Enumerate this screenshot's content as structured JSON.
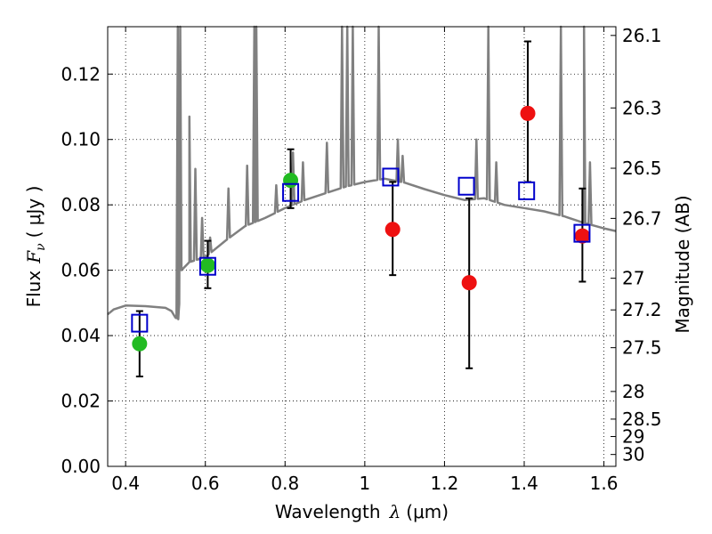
{
  "chart_data": {
    "type": "scatter",
    "xlabel_prefix": "Wavelength",
    "xlabel_var": "λ",
    "xlabel_unit": "(μm)",
    "ylabel_prefix": "Flux",
    "ylabel_var": "F",
    "ylabel_sub": "ν",
    "ylabel_unit": "( μJy )",
    "y2label": "Magnitude (AB)",
    "xlim": [
      0.355,
      1.63
    ],
    "ylim": [
      0.0,
      0.1345
    ],
    "grid": true,
    "xticks": [
      0.4,
      0.6,
      0.8,
      1.0,
      1.2,
      1.4,
      1.6
    ],
    "xtick_labels": [
      "0.4",
      "0.6",
      "0.8",
      "1",
      "1.2",
      "1.4",
      "1.6"
    ],
    "yticks": [
      0.0,
      0.02,
      0.04,
      0.06,
      0.08,
      0.1,
      0.12
    ],
    "ytick_labels": [
      "0.00",
      "0.02",
      "0.04",
      "0.06",
      "0.08",
      "0.10",
      "0.12"
    ],
    "mag_ticks": [
      {
        "label": "26.1",
        "mag": 26.1
      },
      {
        "label": "26.3",
        "mag": 26.3
      },
      {
        "label": "26.5",
        "mag": 26.5
      },
      {
        "label": "26.7",
        "mag": 26.7
      },
      {
        "label": "27",
        "mag": 27.0
      },
      {
        "label": "27.2",
        "mag": 27.2
      },
      {
        "label": "27.5",
        "mag": 27.5
      },
      {
        "label": "28",
        "mag": 28.0
      },
      {
        "label": "28.5",
        "mag": 28.5
      },
      {
        "label": "29",
        "mag": 29.0
      },
      {
        "label": "30",
        "mag": 30.0
      }
    ],
    "colors": {
      "model": "#808080",
      "green": "#22bb22",
      "red": "#ee1111",
      "square": "#0000cc",
      "errorbar": "#000000"
    },
    "series": [
      {
        "marker": "circle",
        "color": "green",
        "points": [
          {
            "x": 0.435,
            "y": 0.0375,
            "ylo": 0.0275,
            "yhi": 0.0475
          },
          {
            "x": 0.606,
            "y": 0.0615,
            "ylo": 0.0545,
            "yhi": 0.069
          },
          {
            "x": 0.814,
            "y": 0.0875,
            "ylo": 0.079,
            "yhi": 0.097
          }
        ]
      },
      {
        "marker": "circle",
        "color": "red",
        "points": [
          {
            "x": 1.07,
            "y": 0.0725,
            "ylo": 0.0585,
            "yhi": 0.087
          },
          {
            "x": 1.262,
            "y": 0.0562,
            "ylo": 0.03,
            "yhi": 0.082
          },
          {
            "x": 1.409,
            "y": 0.108,
            "ylo": 0.087,
            "yhi": 0.13
          },
          {
            "x": 1.546,
            "y": 0.0705,
            "ylo": 0.0565,
            "yhi": 0.085
          }
        ]
      },
      {
        "marker": "square",
        "color": "square",
        "points": [
          {
            "x": 0.435,
            "y": 0.0438
          },
          {
            "x": 0.606,
            "y": 0.0612
          },
          {
            "x": 0.814,
            "y": 0.0838
          },
          {
            "x": 1.065,
            "y": 0.0885
          },
          {
            "x": 1.255,
            "y": 0.0857
          },
          {
            "x": 1.406,
            "y": 0.0843
          },
          {
            "x": 1.545,
            "y": 0.0713
          }
        ]
      }
    ],
    "model_spectrum": {
      "continuum": [
        [
          0.355,
          0.0465
        ],
        [
          0.37,
          0.048
        ],
        [
          0.4,
          0.0492
        ],
        [
          0.45,
          0.049
        ],
        [
          0.5,
          0.0485
        ],
        [
          0.515,
          0.0475
        ],
        [
          0.525,
          0.0455
        ],
        [
          0.532,
          0.045
        ],
        [
          0.54,
          0.06
        ],
        [
          0.56,
          0.0625
        ],
        [
          0.6,
          0.064
        ],
        [
          0.65,
          0.069
        ],
        [
          0.7,
          0.0735
        ],
        [
          0.75,
          0.076
        ],
        [
          0.8,
          0.079
        ],
        [
          0.85,
          0.0815
        ],
        [
          0.9,
          0.0835
        ],
        [
          0.95,
          0.0855
        ],
        [
          1.0,
          0.087
        ],
        [
          1.05,
          0.088
        ],
        [
          1.1,
          0.0868
        ],
        [
          1.15,
          0.0848
        ],
        [
          1.2,
          0.083
        ],
        [
          1.25,
          0.0815
        ],
        [
          1.3,
          0.082
        ],
        [
          1.35,
          0.08
        ],
        [
          1.4,
          0.079
        ],
        [
          1.45,
          0.078
        ],
        [
          1.5,
          0.0765
        ],
        [
          1.55,
          0.0745
        ],
        [
          1.6,
          0.0728
        ],
        [
          1.63,
          0.072
        ]
      ],
      "emission_lines": [
        [
          0.531,
          0.1345
        ],
        [
          0.537,
          0.1345
        ],
        [
          0.56,
          0.107
        ],
        [
          0.575,
          0.091
        ],
        [
          0.592,
          0.076
        ],
        [
          0.612,
          0.07
        ],
        [
          0.658,
          0.085
        ],
        [
          0.705,
          0.092
        ],
        [
          0.723,
          0.1345
        ],
        [
          0.728,
          0.1345
        ],
        [
          0.778,
          0.086
        ],
        [
          0.82,
          0.096
        ],
        [
          0.845,
          0.093
        ],
        [
          0.905,
          0.099
        ],
        [
          0.943,
          0.1345
        ],
        [
          0.956,
          0.1345
        ],
        [
          0.97,
          0.1345
        ],
        [
          1.035,
          0.1345
        ],
        [
          1.083,
          0.1
        ],
        [
          1.095,
          0.095
        ],
        [
          1.28,
          0.1
        ],
        [
          1.31,
          0.1345
        ],
        [
          1.33,
          0.093
        ],
        [
          1.492,
          0.1345
        ],
        [
          1.55,
          0.1345
        ],
        [
          1.565,
          0.093
        ]
      ]
    }
  }
}
